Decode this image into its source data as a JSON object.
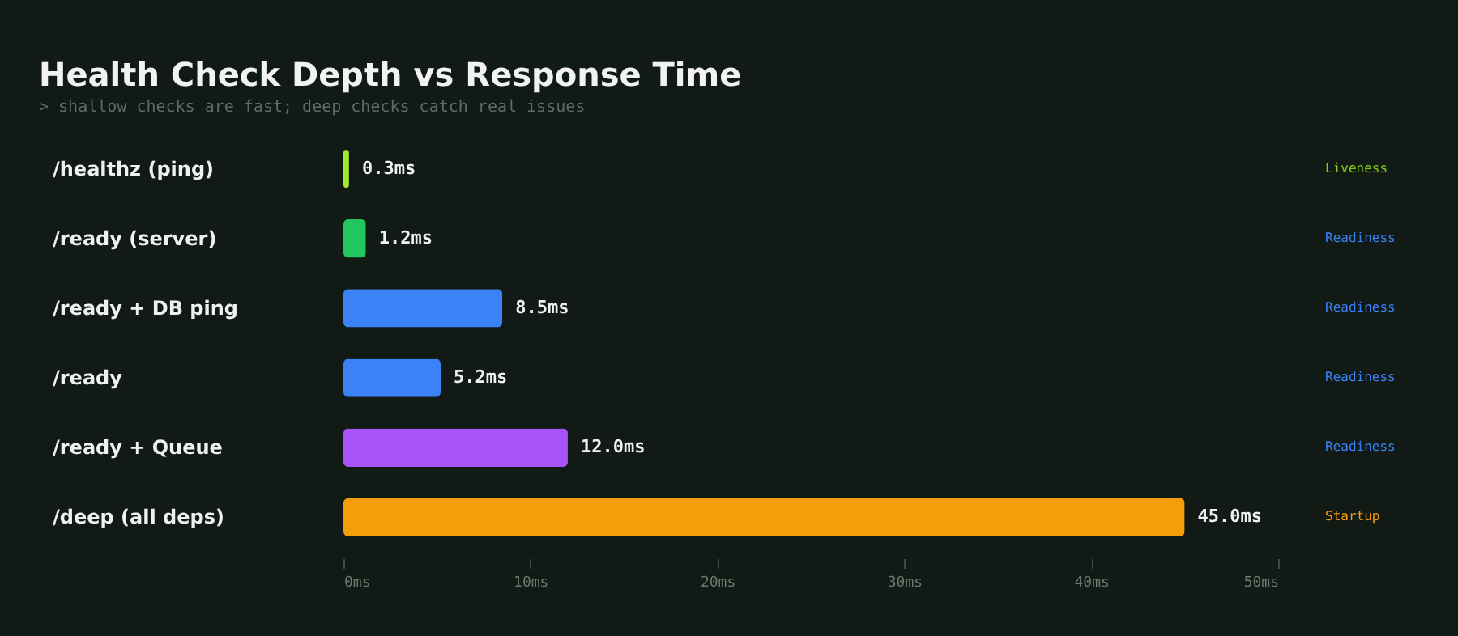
{
  "chart_data": {
    "type": "bar",
    "orientation": "horizontal",
    "title": "Health Check Depth vs Response Time",
    "subtitle": "> shallow checks are fast; deep checks catch real issues",
    "categories": [
      "/healthz (ping)",
      "/ready (server)",
      "/ready + DB ping",
      "/ready",
      "/ready + Queue",
      "/deep (all deps)"
    ],
    "values": [
      0.3,
      1.2,
      8.5,
      5.2,
      12.0,
      45.0
    ],
    "colors": [
      "#a3e635",
      "#22c55e",
      "#3b82f6",
      "#3b82f6",
      "#a855f7",
      "#f59e0b"
    ],
    "value_labels": [
      "0.3ms",
      "1.2ms",
      "8.5ms",
      "5.2ms",
      "12.0ms",
      "45.0ms"
    ],
    "xlim": [
      0,
      50
    ],
    "xticks": [
      {
        "value": 0,
        "label": "0ms"
      },
      {
        "value": 10,
        "label": "10ms"
      },
      {
        "value": 20,
        "label": "20ms"
      },
      {
        "value": 30,
        "label": "30ms"
      },
      {
        "value": 40,
        "label": "40ms"
      },
      {
        "value": 50,
        "label": "50ms"
      }
    ],
    "annotations": [
      "Liveness",
      "Readiness",
      "Readiness",
      "Readiness",
      "Readiness",
      "Startup"
    ],
    "grid": false,
    "legend": false
  }
}
